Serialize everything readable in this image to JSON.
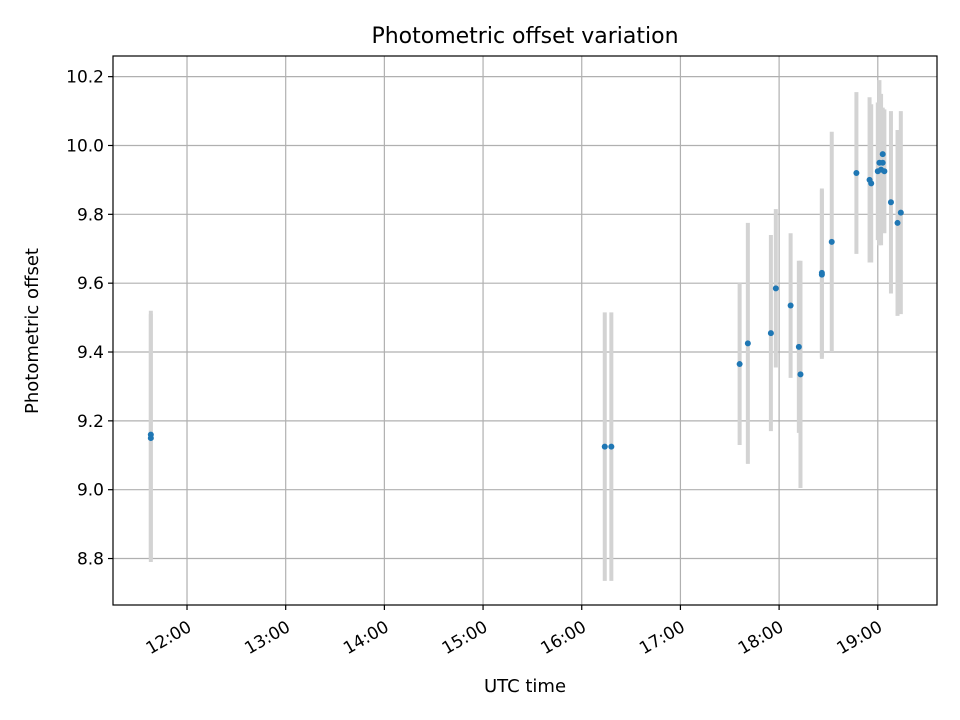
{
  "chart_data": {
    "type": "scatter",
    "title": "Photometric offset variation",
    "xlabel": "UTC time",
    "ylabel": "Photometric offset",
    "x_tick_labels": [
      "12:00",
      "13:00",
      "14:00",
      "15:00",
      "16:00",
      "17:00",
      "18:00",
      "19:00"
    ],
    "x_ticks": [
      "12:00",
      "13:00",
      "14:00",
      "15:00",
      "16:00",
      "17:00",
      "18:00",
      "19:00"
    ],
    "y_ticks": [
      8.8,
      9.0,
      9.2,
      9.4,
      9.6,
      9.8,
      10.0,
      10.2
    ],
    "y_tick_labels": [
      "8.8",
      "9.0",
      "9.2",
      "9.4",
      "9.6",
      "9.8",
      "10.0",
      "10.2"
    ],
    "xlim": [
      "11:15",
      "19:36"
    ],
    "ylim": [
      8.665,
      10.26
    ],
    "grid": true,
    "marker_color": "#1f77b4",
    "errorbar_color": "#d3d3d3",
    "points": [
      {
        "x": "11:38",
        "y": 9.16,
        "yerr": 0.36
      },
      {
        "x": "11:38",
        "y": 9.15,
        "yerr": 0.36
      },
      {
        "x": "16:14",
        "y": 9.125,
        "yerr": 0.39
      },
      {
        "x": "16:18",
        "y": 9.125,
        "yerr": 0.39
      },
      {
        "x": "17:36",
        "y": 9.365,
        "yerr": 0.235
      },
      {
        "x": "17:41",
        "y": 9.425,
        "yerr": 0.35
      },
      {
        "x": "17:55",
        "y": 9.455,
        "yerr": 0.285
      },
      {
        "x": "17:58",
        "y": 9.585,
        "yerr": 0.23
      },
      {
        "x": "18:07",
        "y": 9.535,
        "yerr": 0.21
      },
      {
        "x": "18:12",
        "y": 9.415,
        "yerr": 0.25
      },
      {
        "x": "18:13",
        "y": 9.335,
        "yerr": 0.33
      },
      {
        "x": "18:26",
        "y": 9.63,
        "yerr": 0.245
      },
      {
        "x": "18:26",
        "y": 9.625,
        "yerr": 0.245
      },
      {
        "x": "18:32",
        "y": 9.72,
        "yerr": 0.32
      },
      {
        "x": "18:47",
        "y": 9.92,
        "yerr": 0.235
      },
      {
        "x": "18:55",
        "y": 9.9,
        "yerr": 0.24
      },
      {
        "x": "18:56",
        "y": 9.89,
        "yerr": 0.23
      },
      {
        "x": "19:00",
        "y": 9.925,
        "yerr": 0.2
      },
      {
        "x": "19:01",
        "y": 9.95,
        "yerr": 0.24
      },
      {
        "x": "19:02",
        "y": 9.93,
        "yerr": 0.22
      },
      {
        "x": "19:03",
        "y": 9.95,
        "yerr": 0.16
      },
      {
        "x": "19:03",
        "y": 9.975,
        "yerr": 0.13
      },
      {
        "x": "19:04",
        "y": 9.925,
        "yerr": 0.18
      },
      {
        "x": "19:08",
        "y": 9.835,
        "yerr": 0.265
      },
      {
        "x": "19:12",
        "y": 9.775,
        "yerr": 0.27
      },
      {
        "x": "19:14",
        "y": 9.805,
        "yerr": 0.295
      }
    ]
  }
}
